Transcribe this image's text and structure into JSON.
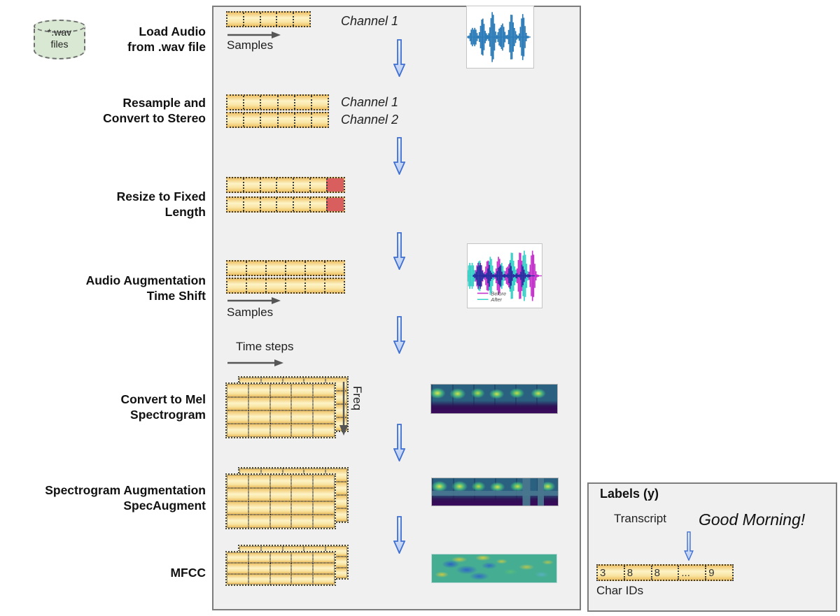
{
  "wav_source": {
    "line1": "*.wav",
    "line2": "files"
  },
  "stages": [
    {
      "label_line1": "Load Audio",
      "label_line2": "from .wav file"
    },
    {
      "label_line1": "Resample and",
      "label_line2": "Convert to Stereo"
    },
    {
      "label_line1": "Resize to Fixed",
      "label_line2": "Length"
    },
    {
      "label_line1": "Audio Augmentation",
      "label_line2": "Time Shift"
    },
    {
      "label_line1": "Convert to Mel",
      "label_line2": "Spectrogram"
    },
    {
      "label_line1": "Spectrogram Augmentation",
      "label_line2": "SpecAugment"
    },
    {
      "label_line1": "MFCC",
      "label_line2": ""
    }
  ],
  "annotations": {
    "channel1_top": "Channel 1",
    "channel1_mid": "Channel 1",
    "channel2_mid": "Channel 2",
    "samples_top": "Samples",
    "samples_mid": "Samples",
    "time_steps": "Time steps",
    "freq": "Freq"
  },
  "augment_legend": {
    "before": "Before",
    "after": "After"
  },
  "labels_panel": {
    "title": "Labels (y)",
    "transcript_label": "Transcript",
    "transcript_value": "Good Morning!",
    "char_ids_label": "Char IDs",
    "char_ids": [
      "3",
      "8",
      "8",
      "...",
      "9"
    ]
  },
  "colors": {
    "strip_yellow": "#f9e4a2",
    "pad_red": "#d95f5f",
    "arrow_blue": "#3f6fd1",
    "wav_cylinder_green": "#d8e8d2",
    "waveform_blue": "#2b7bb8",
    "before_magenta": "#c433cc",
    "after_cyan": "#35d0c8"
  }
}
